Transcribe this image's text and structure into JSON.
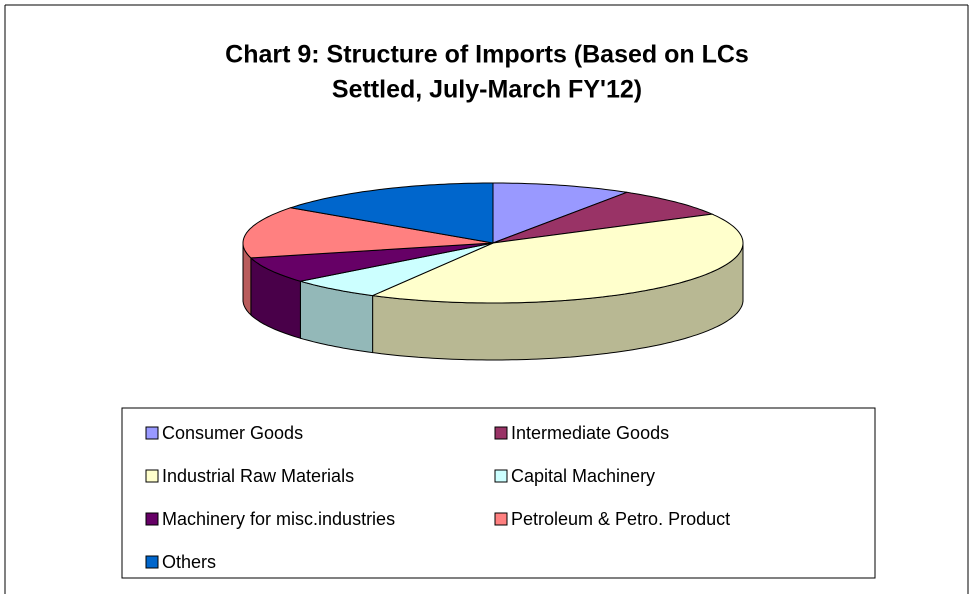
{
  "chart_data": {
    "type": "pie3d",
    "title": "Chart 9: Structure of Imports (Based on LCs Settled, July-March FY'12)",
    "title_lines": [
      "Chart 9: Structure of Imports (Based on LCs",
      "Settled, July-March FY'12)"
    ],
    "categories": [
      "Consumer Goods",
      "Intermediate Goods",
      "Industrial Raw Materials",
      "Capital Machinery",
      "Machinery for misc.industries",
      "Petroleum & Petro. Product",
      "Others"
    ],
    "values": [
      9,
      8,
      41,
      6,
      7,
      14,
      15
    ],
    "colors": [
      "#9999ff",
      "#993366",
      "#ffffcc",
      "#ccffff",
      "#660066",
      "#ff8080",
      "#0066cc"
    ],
    "legend": "bottom"
  }
}
